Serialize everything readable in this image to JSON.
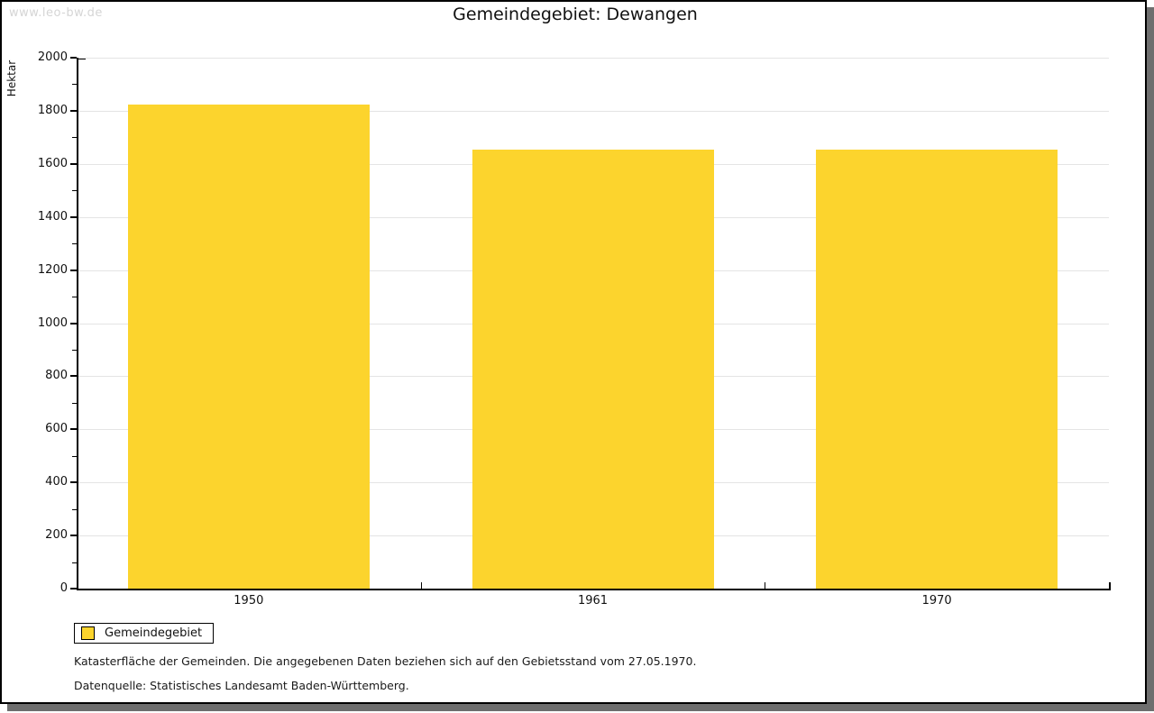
{
  "watermark": "www.leo-bw.de",
  "chart_data": {
    "type": "bar",
    "title": "Gemeindegebiet: Dewangen",
    "categories": [
      "1950",
      "1961",
      "1970"
    ],
    "values": [
      1825,
      1655,
      1655
    ],
    "series_name": "Gemeindegebiet",
    "xlabel": "",
    "ylabel": "Hektar",
    "ylim": [
      0,
      2000
    ],
    "ytick_major_step": 200,
    "ytick_minor_step": 100,
    "ytick_labels": [
      "0",
      "200",
      "400",
      "600",
      "800",
      "1000",
      "1200",
      "1400",
      "1600",
      "1800",
      "2000"
    ],
    "grid": "horizontal-major",
    "legend_position": "bottom-left",
    "bar_color": "#fcd42d",
    "grid_color": "#e4e4e4",
    "axis_color": "#000000"
  },
  "legend": {
    "label": "Gemeindegebiet",
    "swatch_color": "#fcd42d"
  },
  "footer": {
    "line1": "Katasterfläche der Gemeinden. Die angegebenen Daten beziehen sich auf den Gebietsstand vom 27.05.1970.",
    "line2": "Datenquelle: Statistisches Landesamt Baden-Württemberg."
  }
}
